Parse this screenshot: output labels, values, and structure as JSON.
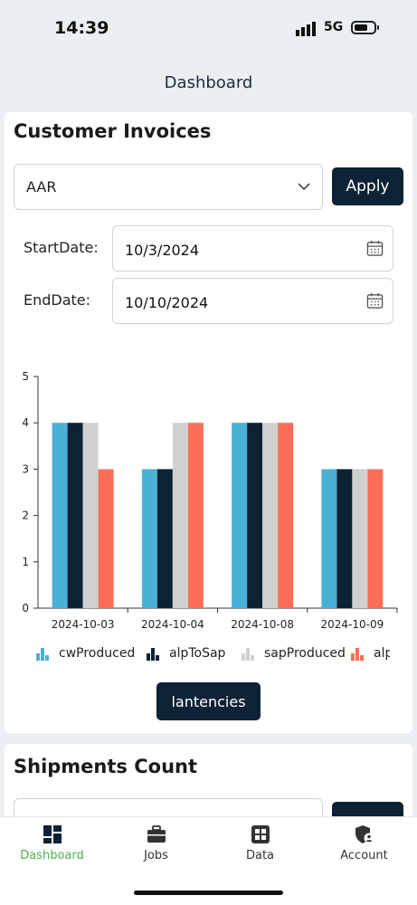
{
  "status_bar": {
    "time": "14:39",
    "network": "5G"
  },
  "nav": {
    "title": "Dashboard"
  },
  "customer_invoices": {
    "title": "Customer Invoices",
    "customer_select": {
      "value": "AAR"
    },
    "apply_label": "Apply",
    "start_date_label": "StartDate:",
    "start_date_value": "10/3/2024",
    "end_date_label": "EndDate:",
    "end_date_value": "10/10/2024",
    "latencies_label": "lantencies",
    "legend": [
      {
        "label": "cwProduced",
        "color": "#4bb0d6"
      },
      {
        "label": "alpToSap",
        "color": "#0d2235"
      },
      {
        "label": "sapProduced",
        "color": "#d0d0d0"
      },
      {
        "label": "alpProduced",
        "color": "#fa6e59"
      }
    ]
  },
  "shipments_count": {
    "title": "Shipments Count"
  },
  "bottom_nav": {
    "items": [
      {
        "label": "Dashboard",
        "icon": "dashboard-icon",
        "active": true
      },
      {
        "label": "Jobs",
        "icon": "briefcase-icon",
        "active": false
      },
      {
        "label": "Data",
        "icon": "grid-icon",
        "active": false
      },
      {
        "label": "Account",
        "icon": "user-shield-icon",
        "active": false
      }
    ]
  },
  "colors": {
    "accent": "#0d2235",
    "active_nav": "#4caf50"
  },
  "chart_data": {
    "type": "bar",
    "categories": [
      "2024-10-03",
      "2024-10-04",
      "2024-10-08",
      "2024-10-09"
    ],
    "series": [
      {
        "name": "cwProduced",
        "values": [
          4,
          3,
          4,
          3
        ],
        "color": "#4bb0d6"
      },
      {
        "name": "alpToSap",
        "values": [
          4,
          3,
          4,
          3
        ],
        "color": "#0d2235"
      },
      {
        "name": "sapProduced",
        "values": [
          4,
          4,
          4,
          3
        ],
        "color": "#d0d0d0"
      },
      {
        "name": "alpProduced",
        "values": [
          3,
          4,
          4,
          3
        ],
        "color": "#fa6e59"
      }
    ],
    "yticks": [
      0,
      1,
      2,
      3,
      4,
      5
    ],
    "ylim": [
      0,
      5
    ],
    "title": "",
    "xlabel": "",
    "ylabel": "",
    "grid": false,
    "legend_position": "bottom"
  }
}
